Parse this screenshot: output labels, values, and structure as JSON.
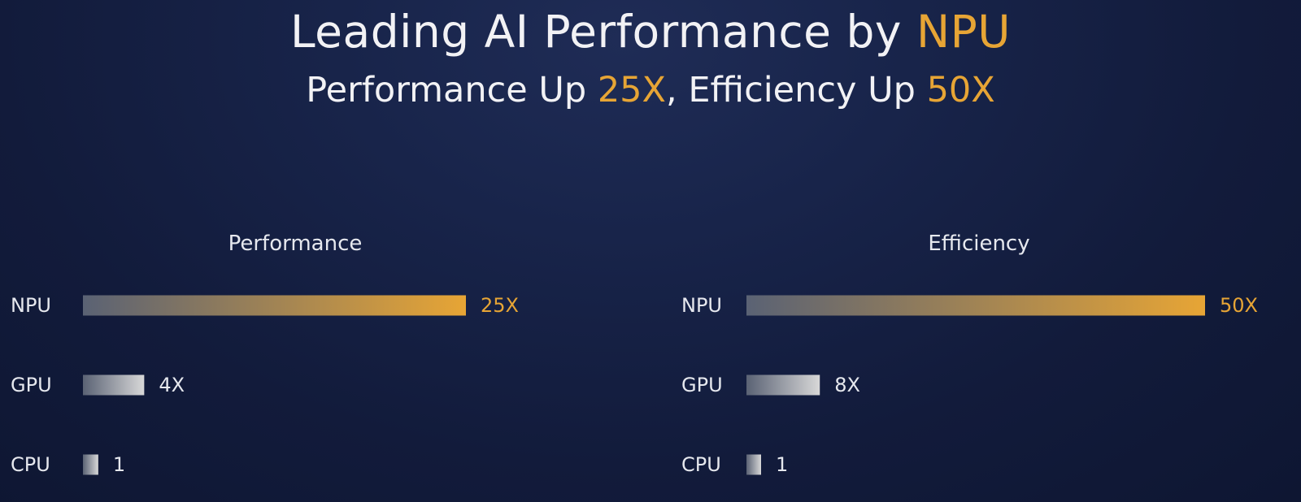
{
  "header": {
    "title_prefix": "Leading AI Performance by ",
    "title_accent": "NPU",
    "subtitle_part1": "Performance Up ",
    "subtitle_accent1": "25X",
    "subtitle_part2": ", Efficiency Up ",
    "subtitle_accent2": "50X"
  },
  "colors": {
    "background": "#121b3b",
    "accent": "#e7a535",
    "text": "#f2f2f5",
    "bar_start": "#5a6274",
    "bar_end_grey": "#d8d8d8"
  },
  "chart_data": [
    {
      "type": "bar",
      "orientation": "horizontal",
      "title": "Performance",
      "categories": [
        "NPU",
        "GPU",
        "CPU"
      ],
      "values": [
        25,
        4,
        1
      ],
      "value_labels": [
        "25X",
        "4X",
        "1"
      ],
      "highlight": "NPU",
      "xlim": [
        0,
        25
      ]
    },
    {
      "type": "bar",
      "orientation": "horizontal",
      "title": "Efficiency",
      "categories": [
        "NPU",
        "GPU",
        "CPU"
      ],
      "values": [
        50,
        8,
        1
      ],
      "value_labels": [
        "50X",
        "8X",
        "1"
      ],
      "highlight": "NPU",
      "xlim": [
        0,
        50
      ]
    }
  ]
}
